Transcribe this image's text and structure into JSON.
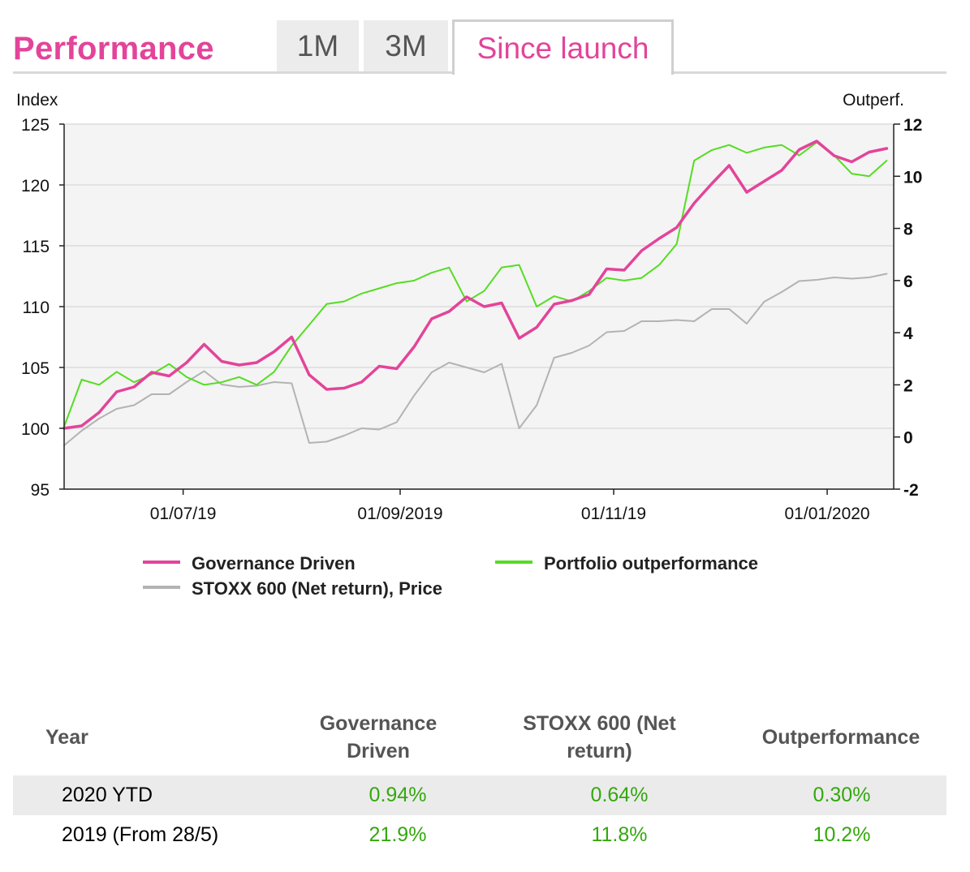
{
  "header": {
    "title": "Performance",
    "tabs": [
      {
        "label": "1M",
        "active": false
      },
      {
        "label": "3M",
        "active": false
      },
      {
        "label": "Since launch",
        "active": true
      }
    ]
  },
  "colors": {
    "accent": "#e3449a",
    "governance": "#e3449a",
    "outperformance": "#55dd22",
    "stoxx": "#b3b3b3",
    "positive": "#34a80e",
    "plot_background": "#f4f4f4"
  },
  "chart_data": {
    "type": "line",
    "left_axis_title": "Index",
    "right_axis_title": "Outperf.",
    "ylim": [
      95,
      125
    ],
    "y_ticks": [
      "95",
      "100",
      "105",
      "110",
      "115",
      "120",
      "125"
    ],
    "y2lim": [
      -2,
      12
    ],
    "y2_ticks": [
      "-2",
      "0",
      "2",
      "4",
      "6",
      "8",
      "10",
      "12"
    ],
    "x_ticks": [
      {
        "label": "01/07/19",
        "date": "2019-07-01"
      },
      {
        "label": "01/09/2019",
        "date": "2019-09-01"
      },
      {
        "label": "01/11/19",
        "date": "2019-11-01"
      },
      {
        "label": "01/01/2020",
        "date": "2020-01-01"
      }
    ],
    "xlim": [
      "2019-05-28",
      "2020-01-20"
    ],
    "grid": true,
    "legend_position": "bottom",
    "x": [
      "2019-05-28",
      "2019-06-02",
      "2019-06-07",
      "2019-06-12",
      "2019-06-17",
      "2019-06-22",
      "2019-06-27",
      "2019-07-02",
      "2019-07-07",
      "2019-07-12",
      "2019-07-17",
      "2019-07-22",
      "2019-07-27",
      "2019-08-01",
      "2019-08-06",
      "2019-08-11",
      "2019-08-16",
      "2019-08-21",
      "2019-08-26",
      "2019-08-31",
      "2019-09-05",
      "2019-09-10",
      "2019-09-15",
      "2019-09-20",
      "2019-09-25",
      "2019-09-30",
      "2019-10-05",
      "2019-10-10",
      "2019-10-15",
      "2019-10-20",
      "2019-10-25",
      "2019-10-30",
      "2019-11-04",
      "2019-11-09",
      "2019-11-14",
      "2019-11-19",
      "2019-11-24",
      "2019-11-29",
      "2019-12-04",
      "2019-12-09",
      "2019-12-14",
      "2019-12-19",
      "2019-12-24",
      "2019-12-29",
      "2020-01-03",
      "2020-01-08",
      "2020-01-13",
      "2020-01-18"
    ],
    "series": [
      {
        "name": "Governance Driven",
        "axis": "left",
        "values": [
          100.0,
          100.2,
          101.3,
          103.0,
          103.4,
          104.6,
          104.3,
          105.4,
          106.9,
          105.5,
          105.2,
          105.4,
          106.3,
          107.5,
          104.4,
          103.2,
          103.3,
          103.8,
          105.1,
          104.9,
          106.7,
          109.0,
          109.6,
          110.8,
          110.0,
          110.3,
          107.4,
          108.3,
          110.2,
          110.5,
          111.0,
          113.1,
          113.0,
          114.6,
          115.6,
          116.5,
          118.5,
          120.1,
          121.6,
          119.4,
          120.3,
          121.2,
          122.9,
          123.6,
          122.4,
          121.9,
          122.7,
          123.0
        ]
      },
      {
        "name": "Portfolio outperformance",
        "axis": "right",
        "values": [
          0.4,
          2.2,
          2.0,
          2.5,
          2.1,
          2.4,
          2.8,
          2.3,
          2.0,
          2.1,
          2.3,
          2.0,
          2.5,
          3.5,
          4.3,
          5.1,
          5.2,
          5.5,
          5.7,
          5.9,
          6.0,
          6.3,
          6.5,
          5.2,
          5.6,
          6.5,
          6.6,
          5.0,
          5.4,
          5.2,
          5.6,
          6.1,
          6.0,
          6.1,
          6.6,
          7.4,
          10.6,
          11.0,
          11.2,
          10.9,
          11.1,
          11.2,
          10.8,
          11.3,
          10.8,
          10.1,
          10.0,
          10.6
        ]
      },
      {
        "name": "STOXX 600 (Net return), Price",
        "axis": "left",
        "values": [
          98.6,
          99.8,
          100.8,
          101.6,
          101.9,
          102.8,
          102.8,
          103.8,
          104.7,
          103.6,
          103.4,
          103.5,
          103.8,
          103.7,
          98.8,
          98.9,
          99.4,
          100.0,
          99.9,
          100.5,
          102.7,
          104.6,
          105.4,
          105.0,
          104.6,
          105.3,
          100.0,
          101.9,
          105.8,
          106.2,
          106.8,
          107.9,
          108.0,
          108.8,
          108.8,
          108.9,
          108.8,
          109.8,
          109.8,
          108.6,
          110.4,
          111.2,
          112.1,
          112.2,
          112.4,
          112.3,
          112.4,
          112.7
        ]
      }
    ]
  },
  "table": {
    "headers": [
      "Year",
      "Governance\nDriven",
      "STOXX 600 (Net\nreturn)",
      "Outperformance"
    ],
    "rows": [
      {
        "year": "2020 YTD",
        "governance": "0.94%",
        "stoxx": "0.64%",
        "outperformance": "0.30%"
      },
      {
        "year": "2019 (From 28/5)",
        "governance": "21.9%",
        "stoxx": "11.8%",
        "outperformance": "10.2%"
      }
    ]
  }
}
